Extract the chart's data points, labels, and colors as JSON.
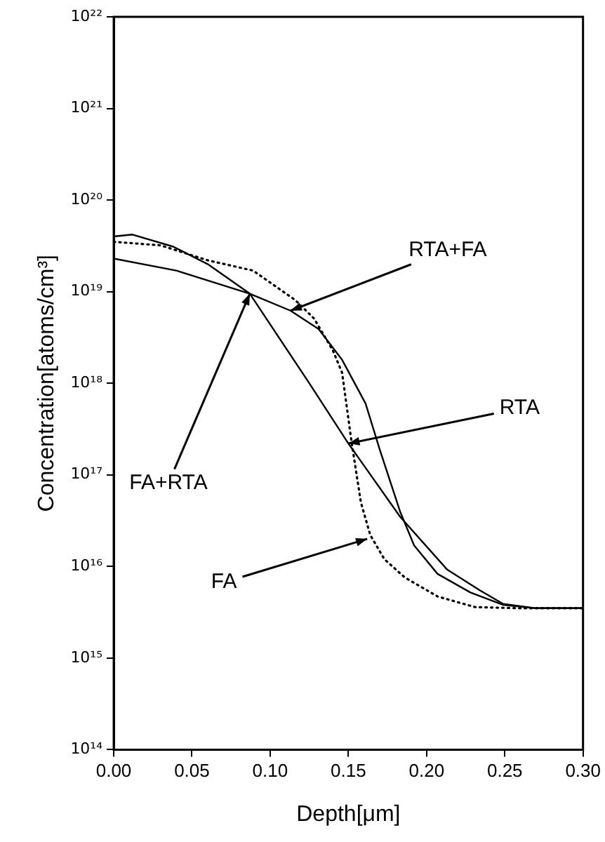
{
  "chart_data": {
    "type": "line",
    "xlabel": "Depth[μm]",
    "ylabel": "Concentration[atoms/cm³]",
    "log": "y",
    "grid": false,
    "legend": false,
    "marker": "none",
    "xlim": [
      0,
      0.3
    ],
    "xticks": [
      {
        "value": 0,
        "label": "0.00"
      },
      {
        "value": 0.05,
        "label": "0.05"
      },
      {
        "value": 0.1,
        "label": "0.10"
      },
      {
        "value": 0.15,
        "label": "0.15"
      },
      {
        "value": 0.2,
        "label": "0.20"
      },
      {
        "value": 0.25,
        "label": "0.25"
      },
      {
        "value": 0.3,
        "label": "0.30"
      }
    ],
    "ylim": [
      100000000000000.0,
      1e+22
    ],
    "yticks": [
      {
        "value": 100000000000000.0,
        "label": "10¹⁴"
      },
      {
        "value": 1000000000000000.0,
        "label": "10¹⁵"
      },
      {
        "value": 1e+16,
        "label": "10¹⁶"
      },
      {
        "value": 1e+17,
        "label": "10¹⁷"
      },
      {
        "value": 1e+18,
        "label": "10¹⁸"
      },
      {
        "value": 1e+19,
        "label": "10¹⁹"
      },
      {
        "value": 1e+20,
        "label": "10²⁰"
      },
      {
        "value": 1e+21,
        "label": "10²¹"
      },
      {
        "value": 1e+22,
        "label": "10²²"
      }
    ],
    "series": [
      {
        "color": "#000000",
        "line_style": "solid",
        "x": [
          0,
          0.012,
          0.038,
          0.06,
          0.087,
          0.125,
          0.15,
          0.183,
          0.213,
          0.234,
          0.249,
          0.27,
          0.3
        ],
        "values": [
          4e+19,
          4.2e+19,
          3.1e+19,
          2e+19,
          9.5e+18,
          1e+18,
          2.2e+17,
          3.5e+16,
          9300000000000000.0,
          5500000000000000.0,
          3900000000000000.0,
          3500000000000000.0,
          3500000000000000.0
        ]
      },
      {
        "color": "#000000",
        "line_style": "solid",
        "x": [
          0,
          0.04,
          0.087,
          0.113,
          0.131,
          0.146,
          0.161,
          0.17,
          0.183,
          0.192,
          0.207,
          0.228,
          0.249,
          0.27,
          0.3
        ],
        "values": [
          2.3e+19,
          1.7e+19,
          9.5e+18,
          6.2e+18,
          3.9e+18,
          1.8e+18,
          6e+17,
          1.9e+17,
          4e+16,
          1.7e+16,
          8300000000000000.0,
          5200000000000000.0,
          3800000000000000.0,
          3500000000000000.0,
          3500000000000000.0
        ]
      },
      {
        "color": "#000000",
        "line_style": "dotted",
        "x": [
          0,
          0.03,
          0.06,
          0.089,
          0.116,
          0.128,
          0.14,
          0.146,
          0.152,
          0.158,
          0.164,
          0.173,
          0.186,
          0.207,
          0.231,
          0.26,
          0.3
        ],
        "values": [
          3.5e+19,
          3.2e+19,
          2.2e+19,
          1.7e+19,
          8.1e+18,
          5.1e+18,
          2.3e+18,
          1.3e+18,
          2.3e+17,
          5e+16,
          2.2e+16,
          1.2e+16,
          7600000000000000.0,
          4700000000000000.0,
          3600000000000000.0,
          3500000000000000.0,
          3500000000000000.0
        ]
      }
    ],
    "annotations": [
      {
        "text": "RTA+FA",
        "x": 0.113,
        "y": 6.2e+18
      },
      {
        "text": "FA+RTA",
        "x": 0.087,
        "y": 9.5e+18
      },
      {
        "text": "RTA",
        "x": 0.15,
        "y": 2.2e+17
      },
      {
        "text": "FA",
        "x": 0.162,
        "y": 2e+16
      }
    ]
  }
}
